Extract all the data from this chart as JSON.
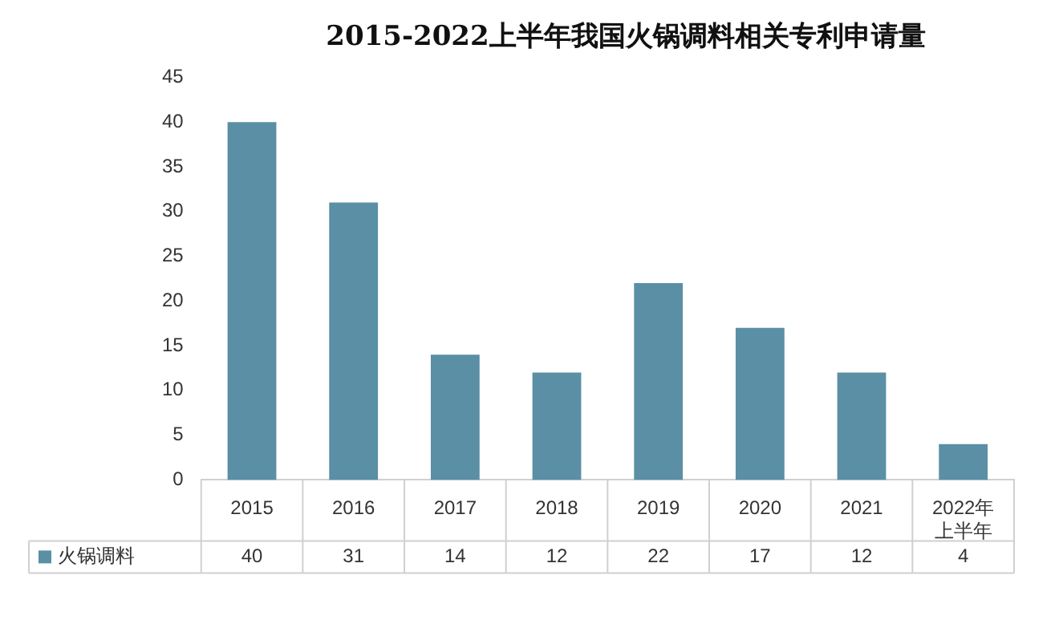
{
  "chart_data": {
    "type": "bar",
    "title": "2015-2022上半年我国火锅调料相关专利申请量",
    "categories": [
      "2015",
      "2016",
      "2017",
      "2018",
      "2019",
      "2020",
      "2021",
      "2022年上半年"
    ],
    "series": [
      {
        "name": "火锅调料",
        "color": "#5a8fa6",
        "values": [
          40,
          31,
          14,
          12,
          22,
          17,
          12,
          4
        ]
      }
    ],
    "ylim": [
      0,
      45
    ],
    "yticks": [
      0,
      5,
      10,
      15,
      20,
      25,
      30,
      35,
      40,
      45
    ],
    "grid": false,
    "legend": "bottom",
    "data_labels": true
  }
}
